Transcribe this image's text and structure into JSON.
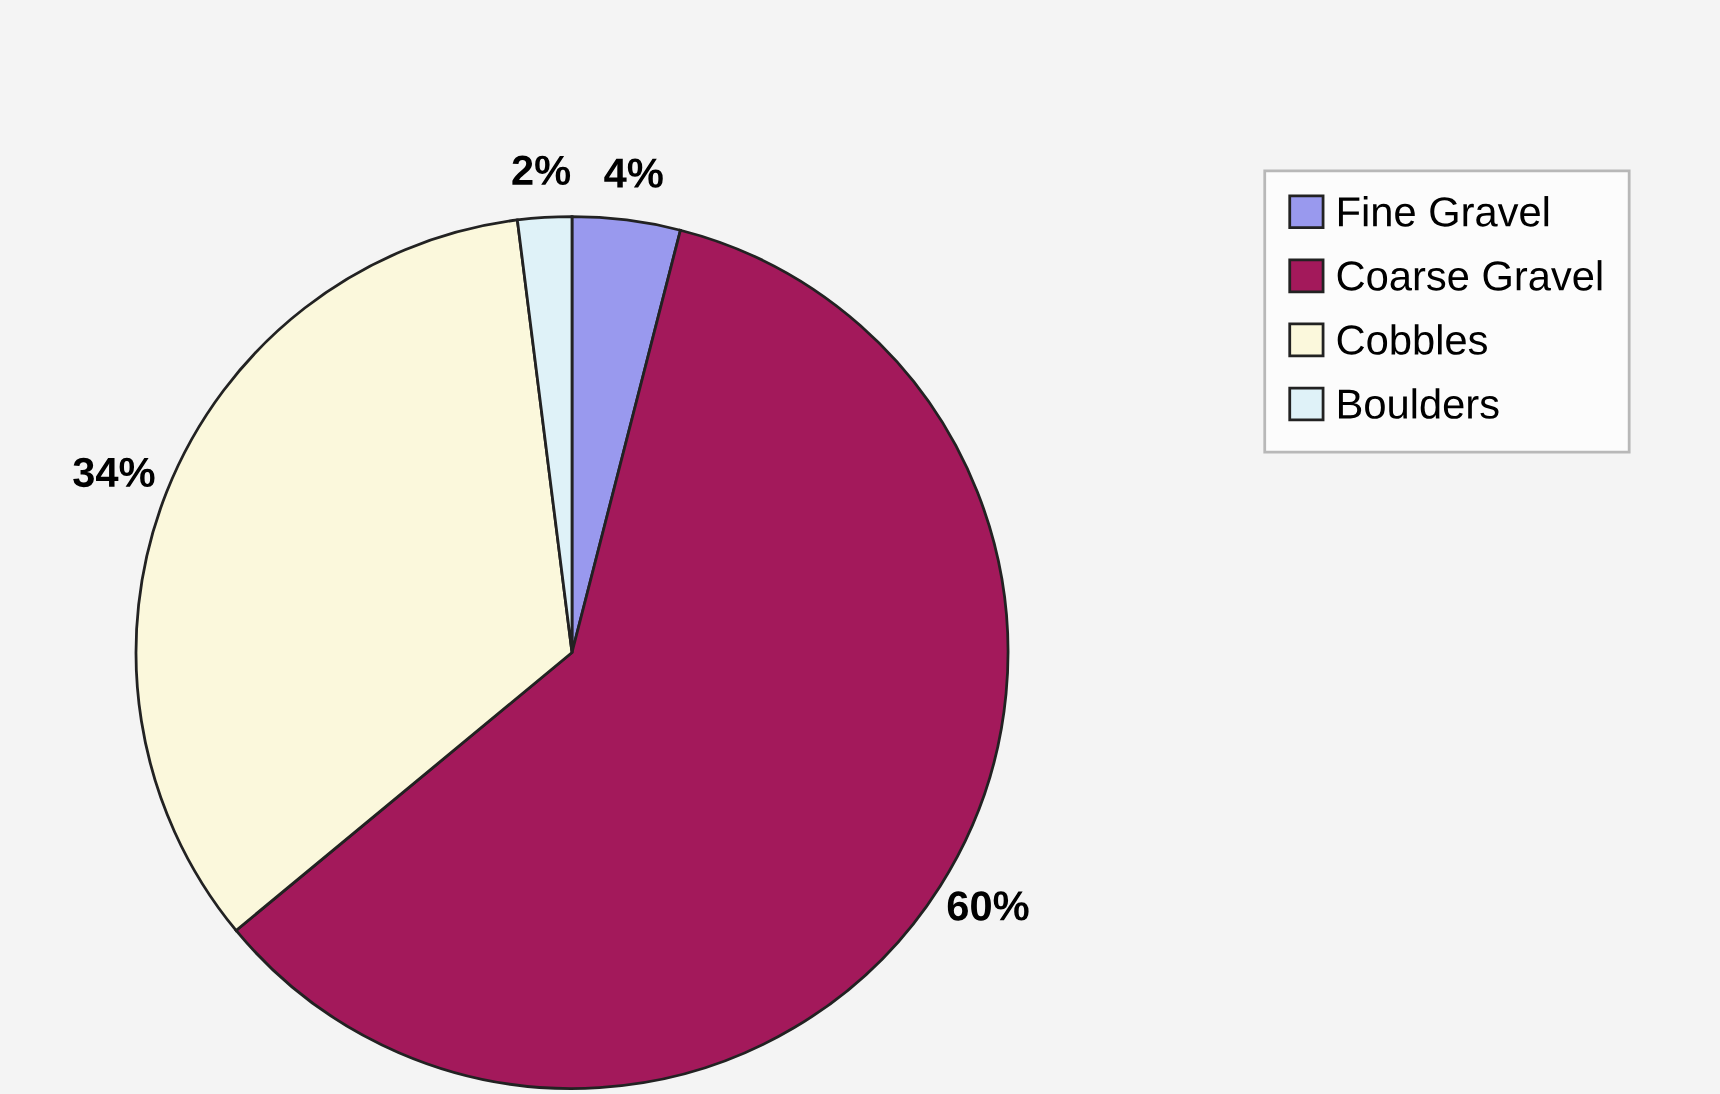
{
  "chart_data": {
    "type": "pie",
    "categories": [
      "Fine Gravel",
      "Coarse Gravel",
      "Cobbles",
      "Boulders"
    ],
    "values": [
      4,
      60,
      34,
      2
    ],
    "colors": [
      "#9999ee",
      "#a3195b",
      "#fbf8dc",
      "#dff2f8"
    ],
    "value_labels": [
      "4%",
      "60%",
      "34%",
      "2%"
    ],
    "legend": "top right"
  }
}
